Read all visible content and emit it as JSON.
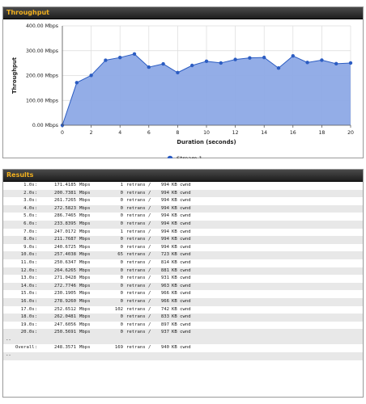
{
  "throughput_panel": {
    "title": "Throughput"
  },
  "results_panel": {
    "title": "Results"
  },
  "chart_data": {
    "type": "area",
    "xlabel": "Duration (seconds)",
    "ylabel": "Throughput",
    "xlim": [
      0,
      20
    ],
    "ylim": [
      0,
      400
    ],
    "x_ticks": [
      "0",
      "2",
      "4",
      "6",
      "8",
      "10",
      "12",
      "14",
      "16",
      "18",
      "20"
    ],
    "y_ticks": [
      "0.00 Mbps",
      "100.00 Mbps",
      "200.00 Mbps",
      "300.00 Mbps",
      "400.00 Mbps"
    ],
    "grid": true,
    "legend_position": "bottom",
    "series": [
      {
        "name": "Stream 1",
        "color": "#2b5cc2",
        "fill": "#8da9e6",
        "x": [
          0,
          1,
          2,
          3,
          4,
          5,
          6,
          7,
          8,
          9,
          10,
          11,
          12,
          13,
          14,
          15,
          16,
          17,
          18,
          19,
          20
        ],
        "y": [
          0,
          171.4185,
          200.7381,
          261.7265,
          272.5823,
          286.7465,
          233.8395,
          247.0172,
          211.7687,
          240.6725,
          257.4038,
          250.6347,
          264.6265,
          271.0428,
          272.7746,
          230.1905,
          278.926,
          252.6512,
          262.0481,
          247.6056,
          250.5691
        ]
      }
    ]
  },
  "results": {
    "rows": [
      {
        "interval": "1.0s:",
        "rate": "171.4185",
        "unit": "Mbps",
        "retrans": "1",
        "retrans_label": "retrans /",
        "cwnd": "994",
        "cwnd_unit": "KB cwnd"
      },
      {
        "interval": "2.0s:",
        "rate": "200.7381",
        "unit": "Mbps",
        "retrans": "0",
        "retrans_label": "retrans /",
        "cwnd": "994",
        "cwnd_unit": "KB cwnd"
      },
      {
        "interval": "3.0s:",
        "rate": "261.7265",
        "unit": "Mbps",
        "retrans": "0",
        "retrans_label": "retrans /",
        "cwnd": "994",
        "cwnd_unit": "KB cwnd"
      },
      {
        "interval": "4.0s:",
        "rate": "272.5823",
        "unit": "Mbps",
        "retrans": "0",
        "retrans_label": "retrans /",
        "cwnd": "994",
        "cwnd_unit": "KB cwnd"
      },
      {
        "interval": "5.0s:",
        "rate": "286.7465",
        "unit": "Mbps",
        "retrans": "0",
        "retrans_label": "retrans /",
        "cwnd": "994",
        "cwnd_unit": "KB cwnd"
      },
      {
        "interval": "6.0s:",
        "rate": "233.8395",
        "unit": "Mbps",
        "retrans": "0",
        "retrans_label": "retrans /",
        "cwnd": "994",
        "cwnd_unit": "KB cwnd"
      },
      {
        "interval": "7.0s:",
        "rate": "247.0172",
        "unit": "Mbps",
        "retrans": "1",
        "retrans_label": "retrans /",
        "cwnd": "994",
        "cwnd_unit": "KB cwnd"
      },
      {
        "interval": "8.0s:",
        "rate": "211.7687",
        "unit": "Mbps",
        "retrans": "0",
        "retrans_label": "retrans /",
        "cwnd": "994",
        "cwnd_unit": "KB cwnd"
      },
      {
        "interval": "9.0s:",
        "rate": "240.6725",
        "unit": "Mbps",
        "retrans": "0",
        "retrans_label": "retrans /",
        "cwnd": "994",
        "cwnd_unit": "KB cwnd"
      },
      {
        "interval": "10.0s:",
        "rate": "257.4038",
        "unit": "Mbps",
        "retrans": "65",
        "retrans_label": "retrans /",
        "cwnd": "723",
        "cwnd_unit": "KB cwnd"
      },
      {
        "interval": "11.0s:",
        "rate": "250.6347",
        "unit": "Mbps",
        "retrans": "0",
        "retrans_label": "retrans /",
        "cwnd": "814",
        "cwnd_unit": "KB cwnd"
      },
      {
        "interval": "12.0s:",
        "rate": "264.6265",
        "unit": "Mbps",
        "retrans": "0",
        "retrans_label": "retrans /",
        "cwnd": "881",
        "cwnd_unit": "KB cwnd"
      },
      {
        "interval": "13.0s:",
        "rate": "271.0428",
        "unit": "Mbps",
        "retrans": "0",
        "retrans_label": "retrans /",
        "cwnd": "931",
        "cwnd_unit": "KB cwnd"
      },
      {
        "interval": "14.0s:",
        "rate": "272.7746",
        "unit": "Mbps",
        "retrans": "0",
        "retrans_label": "retrans /",
        "cwnd": "963",
        "cwnd_unit": "KB cwnd"
      },
      {
        "interval": "15.0s:",
        "rate": "230.1905",
        "unit": "Mbps",
        "retrans": "0",
        "retrans_label": "retrans /",
        "cwnd": "966",
        "cwnd_unit": "KB cwnd"
      },
      {
        "interval": "16.0s:",
        "rate": "278.9260",
        "unit": "Mbps",
        "retrans": "0",
        "retrans_label": "retrans /",
        "cwnd": "966",
        "cwnd_unit": "KB cwnd"
      },
      {
        "interval": "17.0s:",
        "rate": "252.6512",
        "unit": "Mbps",
        "retrans": "102",
        "retrans_label": "retrans /",
        "cwnd": "742",
        "cwnd_unit": "KB cwnd"
      },
      {
        "interval": "18.0s:",
        "rate": "262.0481",
        "unit": "Mbps",
        "retrans": "0",
        "retrans_label": "retrans /",
        "cwnd": "833",
        "cwnd_unit": "KB cwnd"
      },
      {
        "interval": "19.0s:",
        "rate": "247.6056",
        "unit": "Mbps",
        "retrans": "0",
        "retrans_label": "retrans /",
        "cwnd": "897",
        "cwnd_unit": "KB cwnd"
      },
      {
        "interval": "20.0s:",
        "rate": "250.5691",
        "unit": "Mbps",
        "retrans": "0",
        "retrans_label": "retrans /",
        "cwnd": "937",
        "cwnd_unit": "KB cwnd"
      }
    ],
    "separator": "--",
    "overall": {
      "interval": "Overall:",
      "rate": "248.3571",
      "unit": "Mbps",
      "retrans": "169",
      "retrans_label": "retrans /",
      "cwnd": "940",
      "cwnd_unit": "KB cwnd"
    },
    "separator_end": "--"
  }
}
